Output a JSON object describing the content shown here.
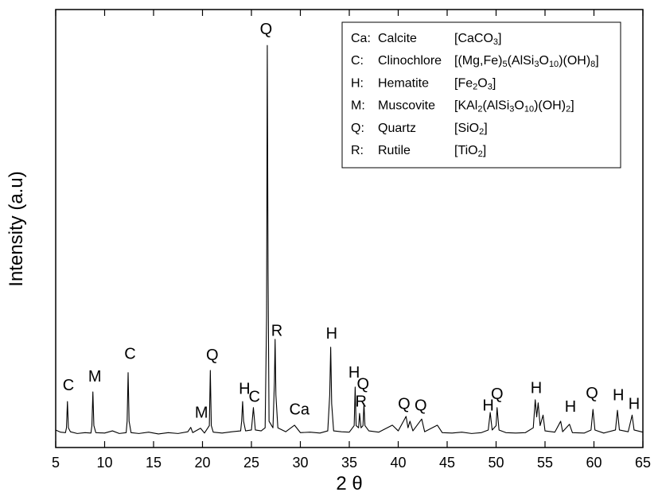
{
  "chart_data": {
    "type": "line",
    "x_label": "2 θ",
    "y_label": "Intensity (a.u)",
    "xlim": [
      5,
      65
    ],
    "xticks": [
      5,
      10,
      15,
      20,
      25,
      30,
      35,
      40,
      45,
      50,
      55,
      60,
      65
    ],
    "ylim": [
      0,
      100
    ],
    "series": [
      {
        "color": "#000000",
        "x": [
          5,
          5.5,
          6.0,
          6.1,
          6.2,
          6.3,
          6.5,
          7.2,
          8.0,
          8.6,
          8.7,
          8.8,
          8.9,
          9.1,
          10,
          10.8,
          11.5,
          12.2,
          12.3,
          12.4,
          12.5,
          12.7,
          13.5,
          14.5,
          15.5,
          16.5,
          17.5,
          18.5,
          18.8,
          19.0,
          19.8,
          20.2,
          20.7,
          20.8,
          20.9,
          21.1,
          22,
          23,
          23.9,
          24.0,
          24.1,
          24.2,
          24.4,
          25.0,
          25.2,
          25.4,
          26.0,
          26.4,
          26.55,
          26.62,
          26.7,
          26.8,
          27.2,
          27.35,
          27.42,
          27.5,
          27.7,
          28.5,
          29.4,
          30,
          31,
          32,
          32.8,
          33.0,
          33.1,
          33.2,
          33.4,
          34.2,
          35.0,
          35.5,
          35.6,
          35.7,
          35.95,
          36.05,
          36.2,
          36.4,
          36.5,
          36.6,
          37,
          38,
          39.4,
          40,
          40.8,
          41.0,
          41.2,
          41.5,
          42.4,
          42.7,
          44.0,
          44.5,
          45.5,
          46.5,
          47.5,
          48.5,
          49.2,
          49.4,
          49.6,
          50.0,
          50.1,
          50.3,
          51,
          52,
          53,
          53.8,
          54.0,
          54.15,
          54.3,
          54.5,
          54.8,
          55.0,
          56,
          56.6,
          56.8,
          57.5,
          57.8,
          59,
          59.7,
          59.9,
          60.1,
          61,
          62.2,
          62.4,
          62.6,
          63.5,
          63.9,
          64.1,
          65
        ],
        "values": [
          4.0,
          3.5,
          3.4,
          4.5,
          10.5,
          4.5,
          3.6,
          3.2,
          3.4,
          3.3,
          5,
          12.7,
          5,
          3.4,
          3.3,
          3.8,
          3.2,
          3.4,
          6,
          17.1,
          6,
          3.4,
          3.2,
          3.5,
          3.1,
          3.4,
          3.2,
          3.6,
          4.6,
          3.4,
          4.4,
          3.3,
          5,
          17.6,
          5,
          3.5,
          3.3,
          3.6,
          3.8,
          6,
          10.5,
          6,
          3.8,
          4.0,
          9.1,
          4.0,
          3.8,
          4.5,
          30,
          91.8,
          40,
          6,
          4.5,
          15,
          24.7,
          12,
          4.5,
          3.6,
          5.1,
          3.4,
          3.5,
          3.3,
          3.8,
          12,
          22.9,
          10,
          3.8,
          3.6,
          3.5,
          5,
          13.8,
          5,
          4.5,
          7.8,
          4.5,
          5,
          10.0,
          5,
          3.8,
          3.5,
          5.1,
          3.8,
          7.1,
          4.5,
          6.0,
          3.8,
          6.5,
          3.6,
          5.1,
          3.4,
          3.3,
          3.5,
          3.2,
          3.4,
          4,
          8.0,
          4,
          5,
          9.1,
          4,
          3.4,
          3.3,
          3.4,
          4.5,
          10.9,
          7,
          10.2,
          5,
          7.4,
          3.8,
          3.5,
          6.0,
          3.6,
          5.3,
          3.4,
          3.3,
          4,
          8.7,
          4,
          3.3,
          4,
          8.5,
          4,
          3.6,
          7.4,
          4,
          3.5
        ]
      }
    ],
    "annotations": [
      {
        "text": "C",
        "x": 6.3,
        "y": 14.0
      },
      {
        "text": "M",
        "x": 9.0,
        "y": 16.0
      },
      {
        "text": "C",
        "x": 12.6,
        "y": 21.2
      },
      {
        "text": "M",
        "x": 19.9,
        "y": 7.8
      },
      {
        "text": "Q",
        "x": 21.0,
        "y": 20.9
      },
      {
        "text": "H",
        "x": 24.3,
        "y": 13.2
      },
      {
        "text": "C",
        "x": 25.3,
        "y": 11.4
      },
      {
        "text": "Q",
        "x": 26.5,
        "y": 95.3
      },
      {
        "text": "R",
        "x": 27.6,
        "y": 26.5
      },
      {
        "text": "Ca",
        "x": 29.9,
        "y": 8.5
      },
      {
        "text": "H",
        "x": 33.2,
        "y": 25.8
      },
      {
        "text": "H",
        "x": 35.5,
        "y": 16.9
      },
      {
        "text": "Q",
        "x": 36.4,
        "y": 14.3
      },
      {
        "text": "R",
        "x": 36.2,
        "y": 10.3
      },
      {
        "text": "Q",
        "x": 40.6,
        "y": 9.8
      },
      {
        "text": "Q",
        "x": 42.3,
        "y": 9.4
      },
      {
        "text": "H",
        "x": 49.2,
        "y": 9.4
      },
      {
        "text": "Q",
        "x": 50.1,
        "y": 12.0
      },
      {
        "text": "H",
        "x": 54.1,
        "y": 13.4
      },
      {
        "text": "H",
        "x": 57.6,
        "y": 9.1
      },
      {
        "text": "Q",
        "x": 59.8,
        "y": 12.2
      },
      {
        "text": "H",
        "x": 62.5,
        "y": 11.8
      },
      {
        "text": "H",
        "x": 64.1,
        "y": 9.8
      }
    ],
    "legend": [
      {
        "code": "Ca:",
        "name": "Calcite",
        "formula": [
          {
            "text": "[CaCO"
          },
          {
            "text": "3",
            "sub": true
          },
          {
            "text": "]"
          }
        ]
      },
      {
        "code": "C:",
        "name": "Clinochlore",
        "formula": [
          {
            "text": "[(Mg,Fe)"
          },
          {
            "text": "5",
            "sub": true
          },
          {
            "text": "(AlSi"
          },
          {
            "text": "3",
            "sub": true
          },
          {
            "text": "O"
          },
          {
            "text": "10",
            "sub": true
          },
          {
            "text": ")(OH)"
          },
          {
            "text": "8",
            "sub": true
          },
          {
            "text": "]"
          }
        ]
      },
      {
        "code": "H:",
        "name": "Hematite",
        "formula": [
          {
            "text": "[Fe"
          },
          {
            "text": "2",
            "sub": true
          },
          {
            "text": "O"
          },
          {
            "text": "3",
            "sub": true
          },
          {
            "text": "]"
          }
        ]
      },
      {
        "code": "M:",
        "name": "Muscovite",
        "formula": [
          {
            "text": "[KAl"
          },
          {
            "text": "2",
            "sub": true
          },
          {
            "text": "(AlSi"
          },
          {
            "text": "3",
            "sub": true
          },
          {
            "text": "O"
          },
          {
            "text": "10",
            "sub": true
          },
          {
            "text": ")(OH)"
          },
          {
            "text": "2",
            "sub": true
          },
          {
            "text": "]"
          }
        ]
      },
      {
        "code": "Q:",
        "name": "Quartz",
        "formula": [
          {
            "text": "[SiO"
          },
          {
            "text": "2",
            "sub": true
          },
          {
            "text": "]"
          }
        ]
      },
      {
        "code": "R:",
        "name": "Rutile",
        "formula": [
          {
            "text": "[TiO"
          },
          {
            "text": "2",
            "sub": true
          },
          {
            "text": "]"
          }
        ]
      }
    ]
  }
}
